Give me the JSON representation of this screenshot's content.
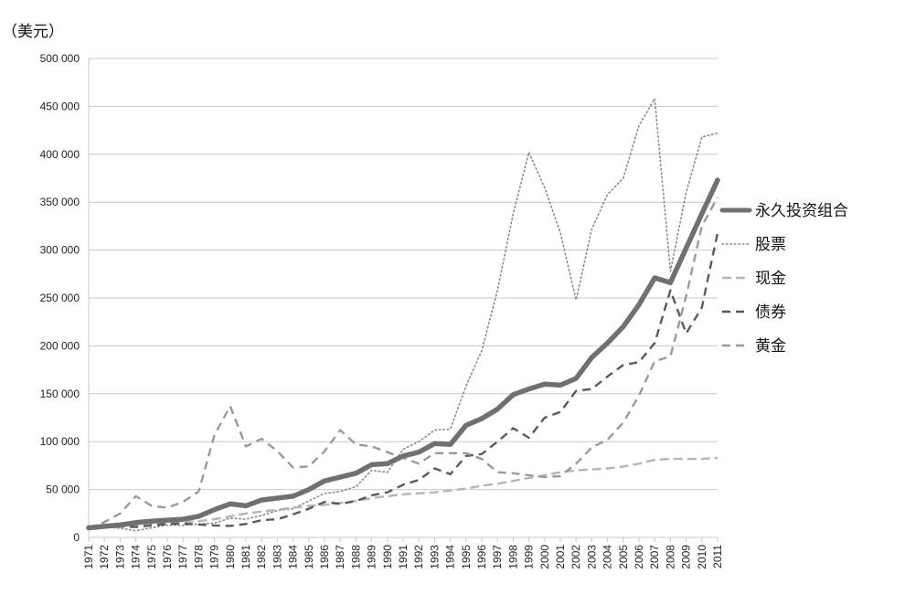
{
  "chart_data": {
    "type": "line",
    "unit_label": "（美元）",
    "title": "",
    "xlabel": "",
    "ylabel": "",
    "ylim": [
      0,
      500000
    ],
    "yticks": [
      0,
      50000,
      100000,
      150000,
      200000,
      250000,
      300000,
      350000,
      400000,
      450000,
      500000
    ],
    "ytick_labels": [
      "0",
      "50 000",
      "100 000",
      "150 000",
      "200 000",
      "250 000",
      "300 000",
      "350 000",
      "400 000",
      "450 000",
      "500 000"
    ],
    "x": [
      "1971",
      "1972",
      "1973",
      "1974",
      "1975",
      "1976",
      "1977",
      "1978",
      "1979",
      "1980",
      "1981",
      "1982",
      "1983",
      "1984",
      "1985",
      "1986",
      "1987",
      "1988",
      "1989",
      "1990",
      "1991",
      "1992",
      "1993",
      "1994",
      "1995",
      "1996",
      "1997",
      "1998",
      "1999",
      "2000",
      "2001",
      "2002",
      "2003",
      "2004",
      "2005",
      "2006",
      "2007",
      "2008",
      "2009",
      "2010",
      "2011"
    ],
    "grid": true,
    "legend_position": "right",
    "series": [
      {
        "name": "永久投资组合",
        "style": "thick-solid",
        "color": "#707070",
        "values": [
          10000,
          11500,
          13000,
          15500,
          17000,
          18000,
          19000,
          22000,
          29000,
          35000,
          33000,
          39000,
          41000,
          43000,
          50000,
          59000,
          63000,
          67000,
          76000,
          77000,
          85000,
          89000,
          98000,
          97000,
          117000,
          124000,
          134000,
          149000,
          155000,
          160000,
          159000,
          166000,
          188000,
          203000,
          220000,
          243000,
          271000,
          266000,
          302000,
          338000,
          373000
        ]
      },
      {
        "name": "股票",
        "style": "dotted",
        "color": "#8a8a8a",
        "values": [
          10000,
          11000,
          9500,
          7000,
          10000,
          13000,
          12500,
          14000,
          15000,
          20000,
          19000,
          23000,
          28000,
          30000,
          38000,
          46000,
          48000,
          53000,
          70000,
          68000,
          92000,
          100000,
          112000,
          113000,
          158000,
          195000,
          258000,
          338000,
          402000,
          365000,
          318000,
          248000,
          322000,
          358000,
          375000,
          430000,
          458000,
          278000,
          360000,
          418000,
          422000
        ]
      },
      {
        "name": "现金",
        "style": "long-dash",
        "color": "#b5b5b5",
        "values": [
          10000,
          11000,
          12000,
          13000,
          14000,
          15000,
          16000,
          17000,
          19000,
          22000,
          25000,
          27000,
          29000,
          31000,
          33000,
          34000,
          36000,
          38000,
          41000,
          43000,
          45000,
          46000,
          47000,
          49000,
          51000,
          54000,
          56000,
          59000,
          62000,
          65000,
          68000,
          70000,
          71000,
          72000,
          74000,
          77000,
          81000,
          82000,
          82000,
          82000,
          83000
        ]
      },
      {
        "name": "债券",
        "style": "dash",
        "color": "#5a5a5a",
        "values": [
          10000,
          11000,
          11500,
          11000,
          12500,
          14000,
          14500,
          13500,
          12500,
          12000,
          14000,
          18000,
          19000,
          24000,
          30000,
          37000,
          35000,
          38000,
          44000,
          47000,
          55000,
          60000,
          72000,
          66000,
          85000,
          87000,
          100000,
          114000,
          104000,
          125000,
          131000,
          153000,
          155000,
          168000,
          180000,
          183000,
          203000,
          258000,
          213000,
          240000,
          318000
        ]
      },
      {
        "name": "黄金",
        "style": "dash",
        "color": "#9a9a9a",
        "values": [
          10000,
          16000,
          25000,
          43000,
          33000,
          31000,
          37000,
          48000,
          107000,
          137000,
          95000,
          103000,
          90000,
          73000,
          74000,
          90000,
          112000,
          97000,
          95000,
          89000,
          83000,
          77000,
          88000,
          88000,
          88000,
          82000,
          68000,
          67000,
          65000,
          63000,
          64000,
          77000,
          94000,
          102000,
          120000,
          148000,
          184000,
          189000,
          252000,
          325000,
          355000
        ]
      }
    ]
  }
}
